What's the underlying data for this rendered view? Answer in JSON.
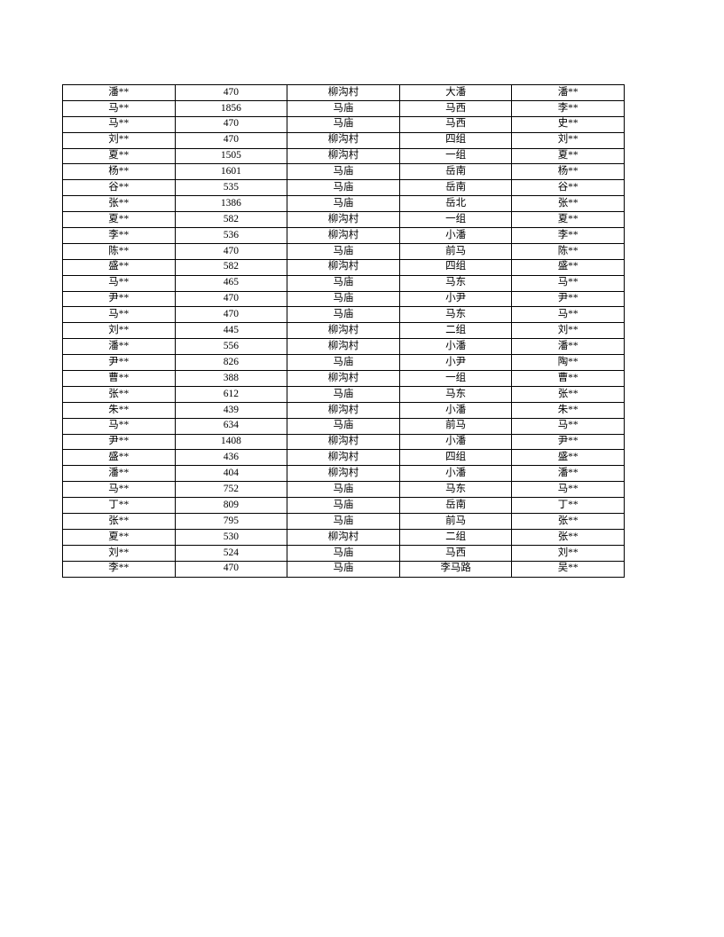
{
  "page": {
    "background_color": "#ffffff",
    "text_color": "#000000",
    "table_border_color": "#000000"
  },
  "table": {
    "column_count": 5,
    "rows": [
      [
        "潘**",
        "470",
        "柳沟村",
        "大潘",
        "潘**"
      ],
      [
        "马**",
        "1856",
        "马庙",
        "马西",
        "李**"
      ],
      [
        "马**",
        "470",
        "马庙",
        "马西",
        "史**"
      ],
      [
        "刘**",
        "470",
        "柳沟村",
        "四组",
        "刘**"
      ],
      [
        "夏**",
        "1505",
        "柳沟村",
        "一组",
        "夏**"
      ],
      [
        "杨**",
        "1601",
        "马庙",
        "岳南",
        "杨**"
      ],
      [
        "谷**",
        "535",
        "马庙",
        "岳南",
        "谷**"
      ],
      [
        "张**",
        "1386",
        "马庙",
        "岳北",
        "张**"
      ],
      [
        "夏**",
        "582",
        "柳沟村",
        "一组",
        "夏**"
      ],
      [
        "李**",
        "536",
        "柳沟村",
        "小潘",
        "李**"
      ],
      [
        "陈**",
        "470",
        "马庙",
        "前马",
        "陈**"
      ],
      [
        "盛**",
        "582",
        "柳沟村",
        "四组",
        "盛**"
      ],
      [
        "马**",
        "465",
        "马庙",
        "马东",
        "马**"
      ],
      [
        "尹**",
        "470",
        "马庙",
        "小尹",
        "尹**"
      ],
      [
        "马**",
        "470",
        "马庙",
        "马东",
        "马**"
      ],
      [
        "刘**",
        "445",
        "柳沟村",
        "二组",
        "刘**"
      ],
      [
        "潘**",
        "556",
        "柳沟村",
        "小潘",
        "潘**"
      ],
      [
        "尹**",
        "826",
        "马庙",
        "小尹",
        "陶**"
      ],
      [
        "曹**",
        "388",
        "柳沟村",
        "一组",
        "曹**"
      ],
      [
        "张**",
        "612",
        "马庙",
        "马东",
        "张**"
      ],
      [
        "朱**",
        "439",
        "柳沟村",
        "小潘",
        "朱**"
      ],
      [
        "马**",
        "634",
        "马庙",
        "前马",
        "马**"
      ],
      [
        "尹**",
        "1408",
        "柳沟村",
        "小潘",
        "尹**"
      ],
      [
        "盛**",
        "436",
        "柳沟村",
        "四组",
        "盛**"
      ],
      [
        "潘**",
        "404",
        "柳沟村",
        "小潘",
        "潘**"
      ],
      [
        "马**",
        "752",
        "马庙",
        "马东",
        "马**"
      ],
      [
        "丁**",
        "809",
        "马庙",
        "岳南",
        "丁**"
      ],
      [
        "张**",
        "795",
        "马庙",
        "前马",
        "张**"
      ],
      [
        "夏**",
        "530",
        "柳沟村",
        "二组",
        "张**"
      ],
      [
        "刘**",
        "524",
        "马庙",
        "马西",
        "刘**"
      ],
      [
        "李**",
        "470",
        "马庙",
        "李马路",
        "吴**"
      ]
    ]
  }
}
